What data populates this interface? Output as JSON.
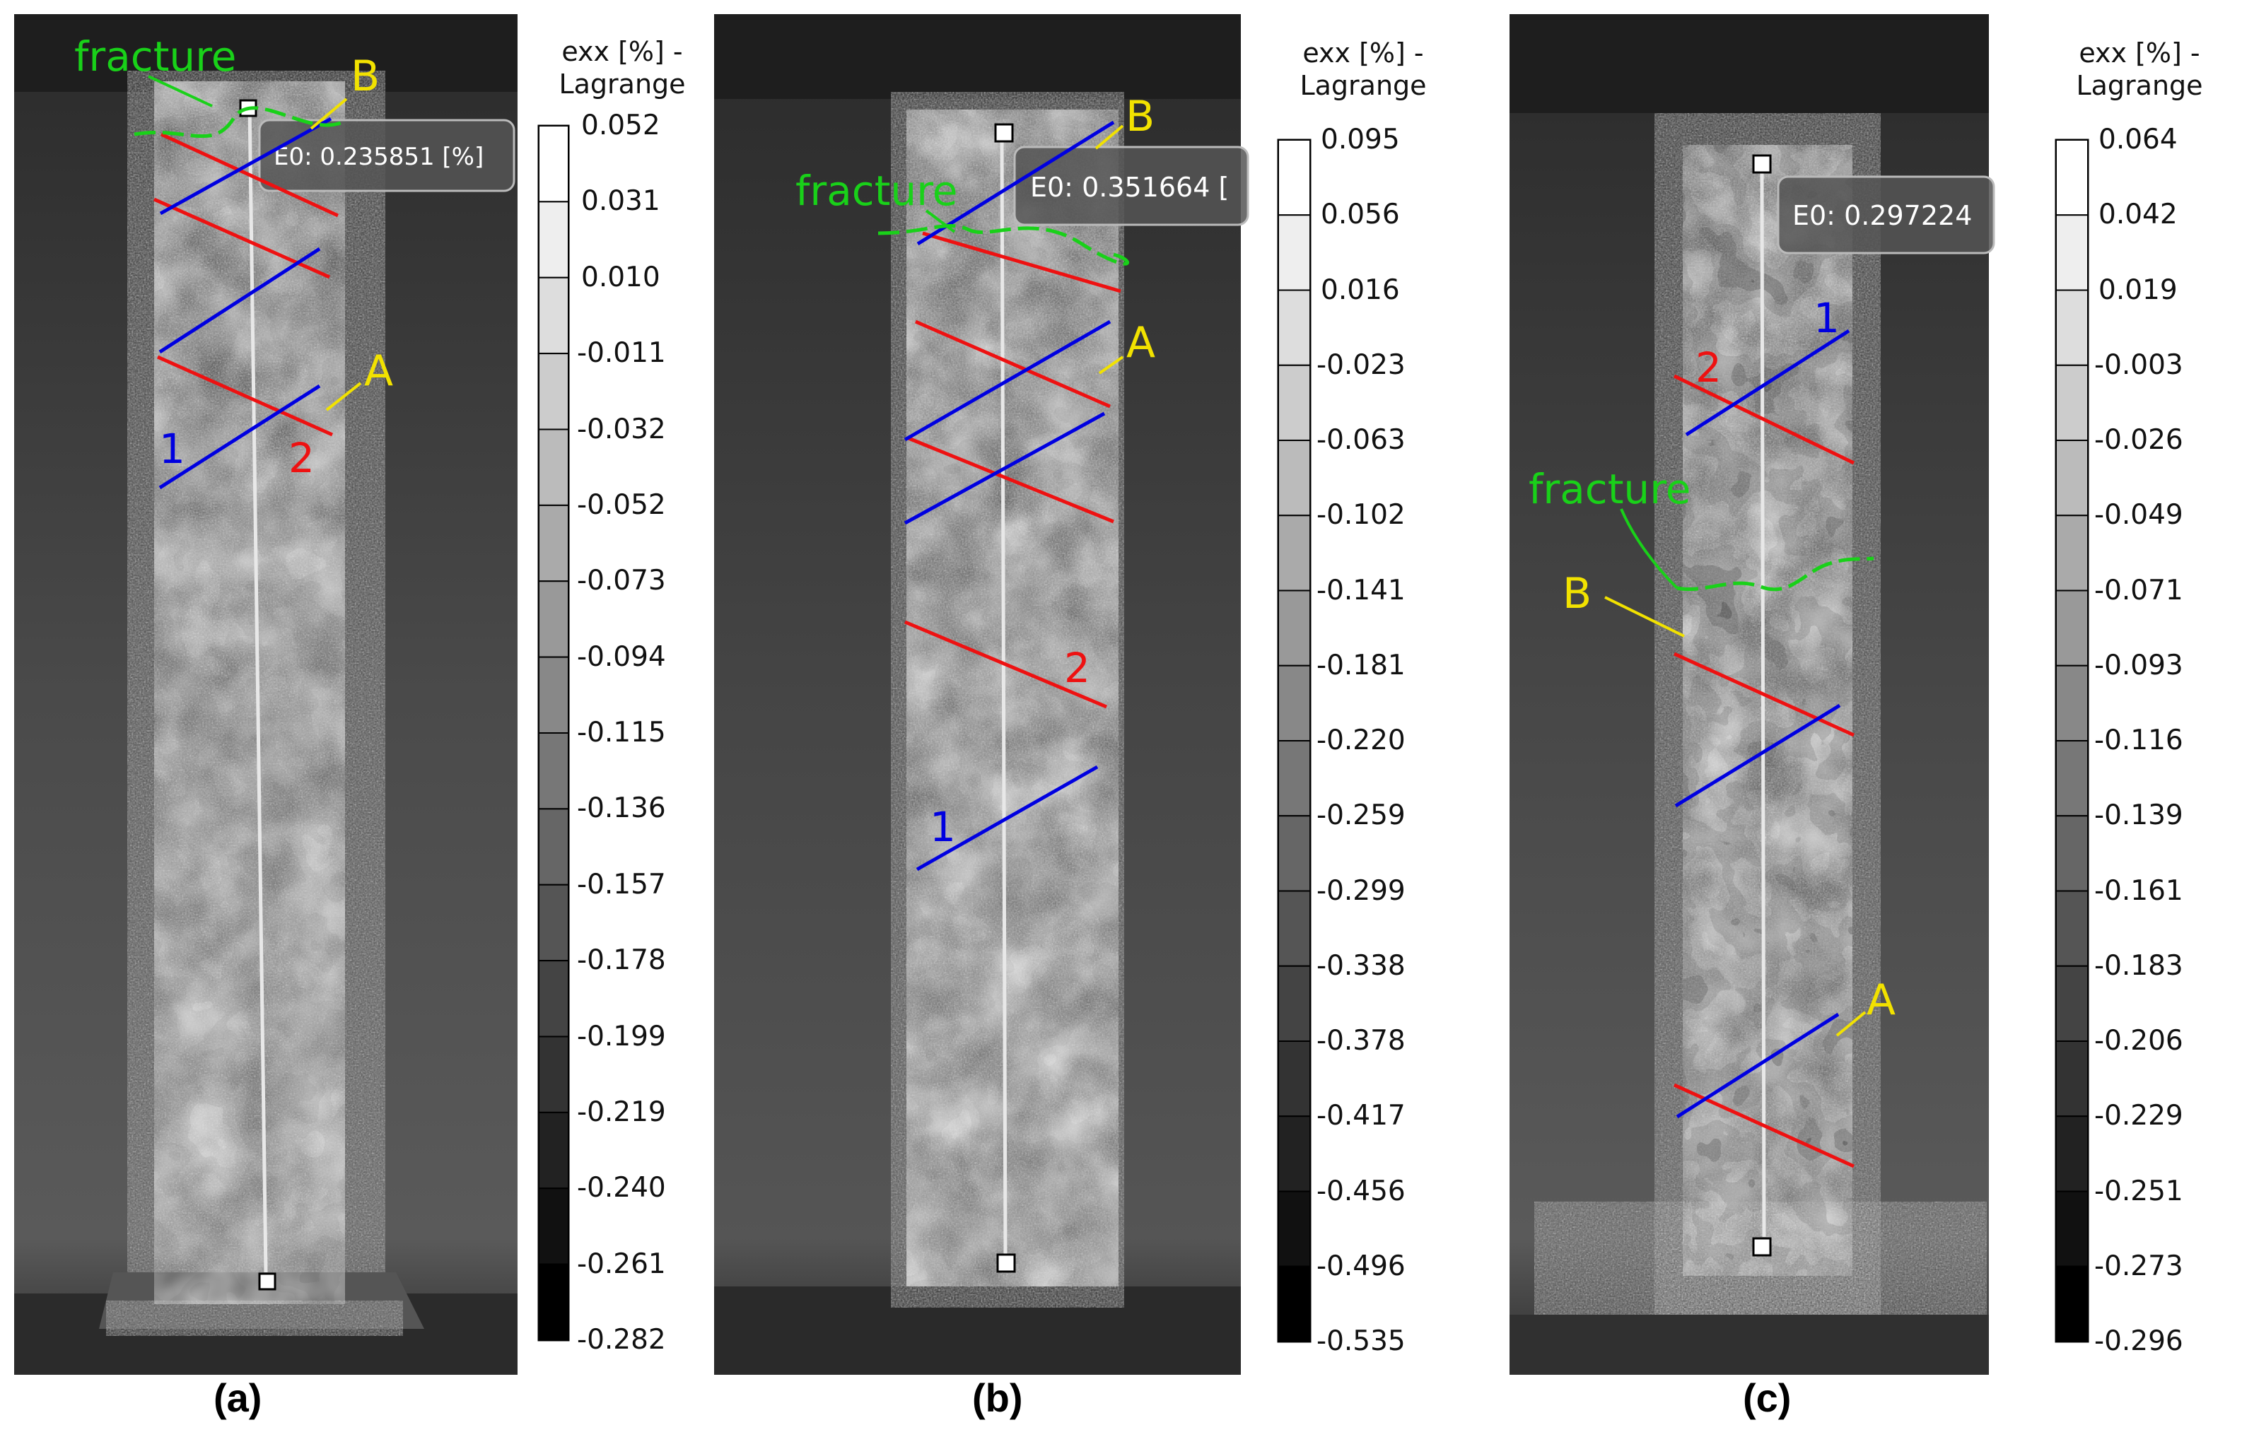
{
  "panels": [
    {
      "caption": "(a)",
      "readout": "E0: 0.235851 [%]",
      "colorbar_title": [
        "exx [%] -",
        "Lagrange"
      ],
      "colorbar_ticks": [
        "0.052",
        "0.031",
        "0.010",
        "-0.011",
        "-0.032",
        "-0.052",
        "-0.073",
        "-0.094",
        "-0.115",
        "-0.136",
        "-0.157",
        "-0.178",
        "-0.199",
        "-0.219",
        "-0.240",
        "-0.261",
        "-0.282"
      ],
      "labels": {
        "fracture": "fracture",
        "point_a": "A",
        "point_b": "B",
        "line_1": "1",
        "line_2": "2"
      }
    },
    {
      "caption": "(b)",
      "readout": "E0: 0.351664 [",
      "colorbar_title": [
        "exx [%] -",
        "Lagrange"
      ],
      "colorbar_ticks": [
        "0.095",
        "0.056",
        "0.016",
        "-0.023",
        "-0.063",
        "-0.102",
        "-0.141",
        "-0.181",
        "-0.220",
        "-0.259",
        "-0.299",
        "-0.338",
        "-0.378",
        "-0.417",
        "-0.456",
        "-0.496",
        "-0.535"
      ],
      "labels": {
        "fracture": "fracture",
        "point_a": "A",
        "point_b": "B",
        "line_1": "1",
        "line_2": "2"
      }
    },
    {
      "caption": "(c)",
      "readout": "E0: 0.297224",
      "colorbar_title": [
        "exx [%] -",
        "Lagrange"
      ],
      "colorbar_ticks": [
        "0.064",
        "0.042",
        "0.019",
        "-0.003",
        "-0.026",
        "-0.049",
        "-0.071",
        "-0.093",
        "-0.116",
        "-0.139",
        "-0.161",
        "-0.183",
        "-0.206",
        "-0.229",
        "-0.251",
        "-0.273",
        "-0.296"
      ],
      "labels": {
        "fracture": "fracture",
        "point_a": "A",
        "point_b": "B",
        "line_1": "1",
        "line_2": "2"
      }
    }
  ],
  "colors": {
    "line_1": "#0000e0",
    "line_2": "#ee1111",
    "fracture": "#19d119",
    "point_label": "#f2e200"
  }
}
